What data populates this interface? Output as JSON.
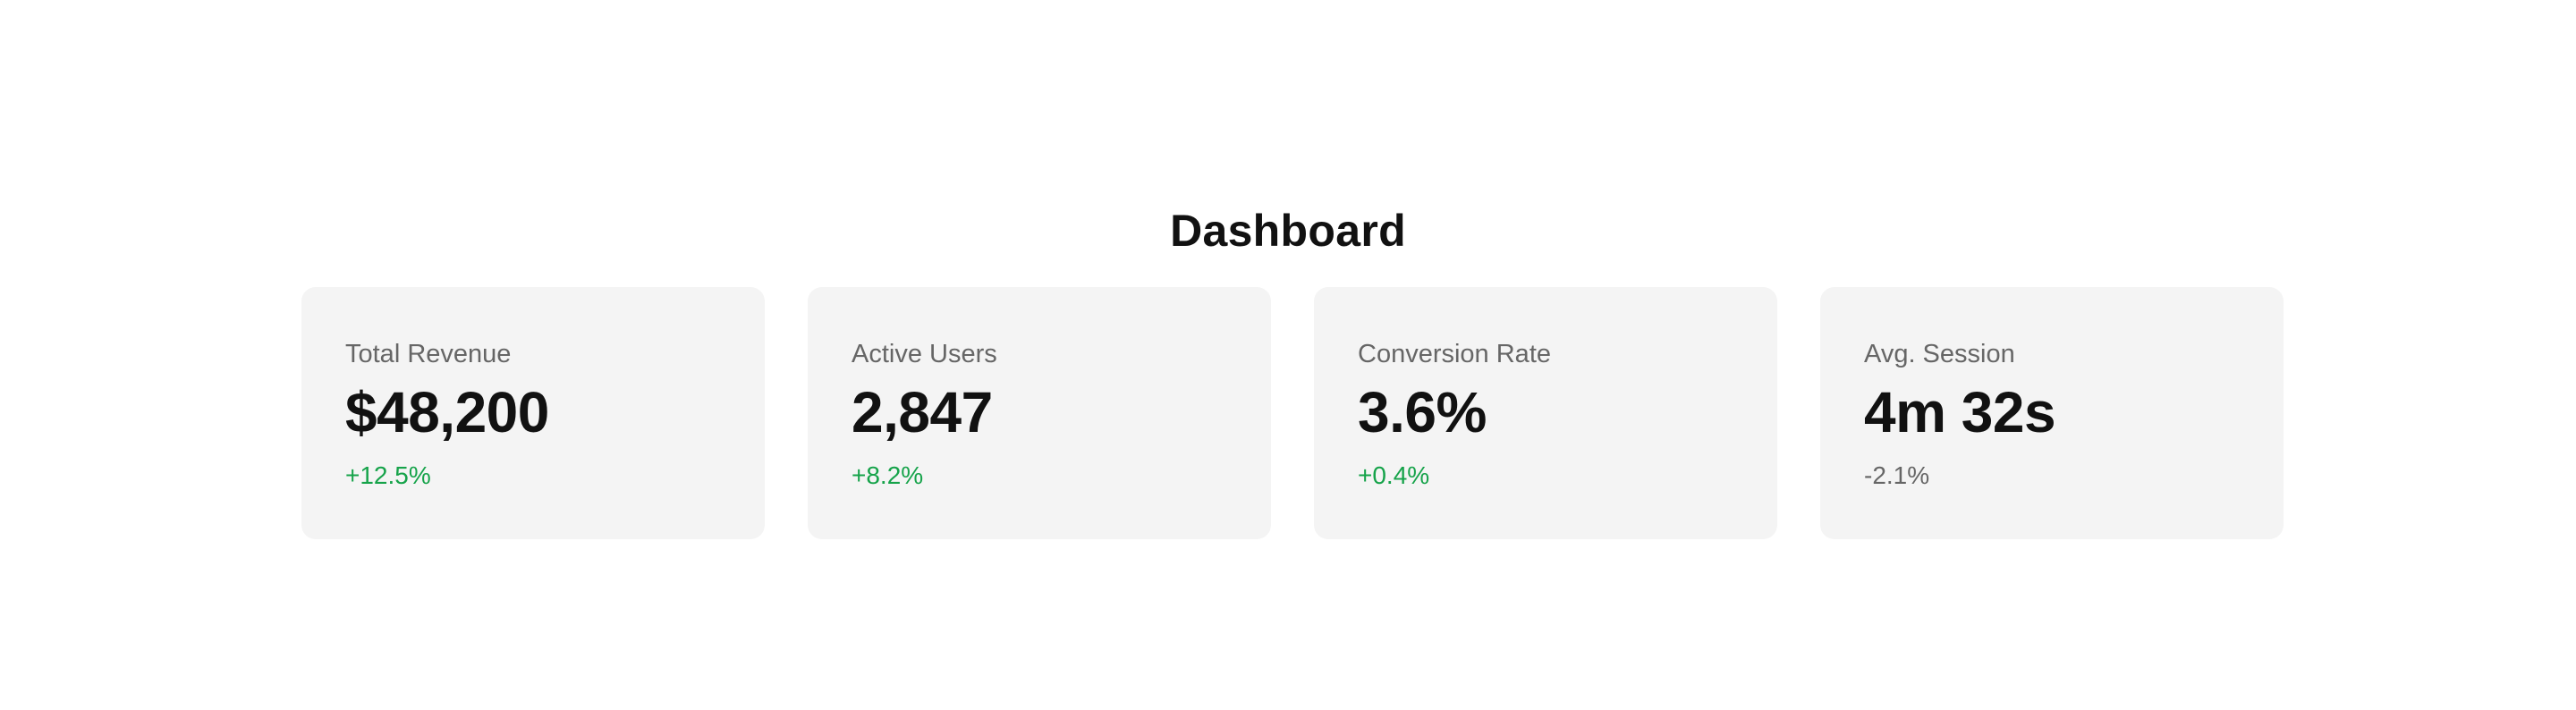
{
  "page": {
    "title": "Dashboard"
  },
  "cards": [
    {
      "label": "Total Revenue",
      "value": "$48,200",
      "change": "+12.5%",
      "change_color": "#16a34a"
    },
    {
      "label": "Active Users",
      "value": "2,847",
      "change": "+8.2%",
      "change_color": "#16a34a"
    },
    {
      "label": "Conversion Rate",
      "value": "3.6%",
      "change": "+0.4%",
      "change_color": "#16a34a"
    },
    {
      "label": "Avg. Session",
      "value": "4m 32s",
      "change": "-2.1%",
      "change_color": "#666666"
    }
  ]
}
